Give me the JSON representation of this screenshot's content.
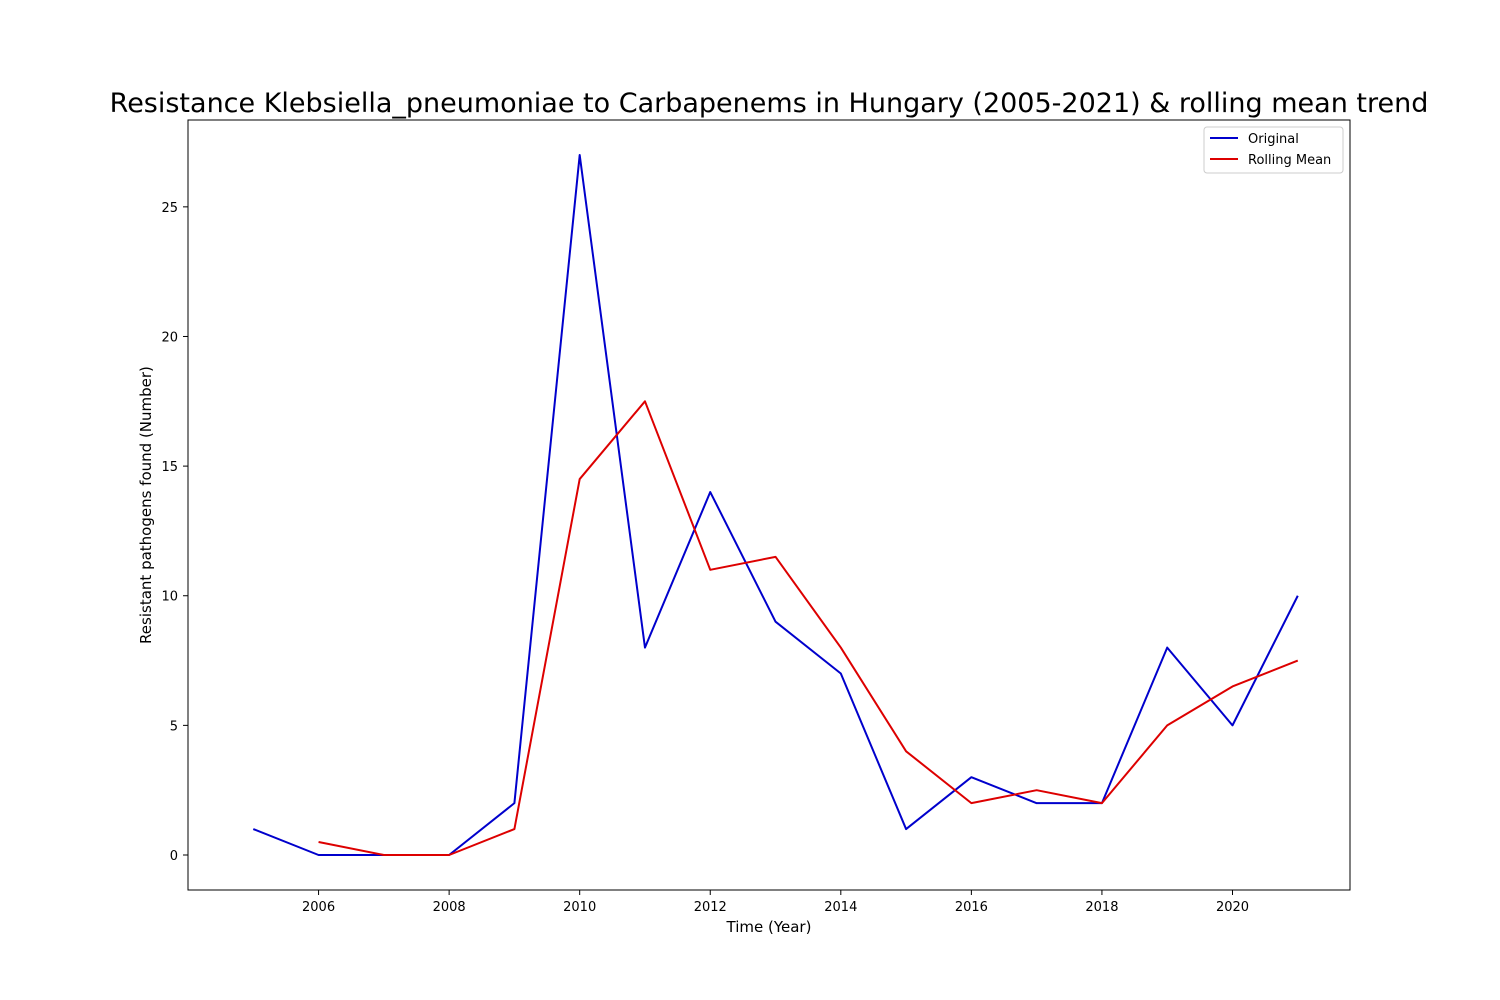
{
  "chart_data": {
    "type": "line",
    "title": "Resistance Klebsiella_pneumoniae to Carbapenems in Hungary (2005-2021) & rolling mean trend",
    "xlabel": "Time (Year)",
    "ylabel": "Resistant pathogens found (Number)",
    "xlim": [
      2004.0,
      2021.8
    ],
    "ylim": [
      -1.35,
      28.35
    ],
    "xticks": [
      2006,
      2008,
      2010,
      2012,
      2014,
      2016,
      2018,
      2020
    ],
    "yticks": [
      0,
      5,
      10,
      15,
      20,
      25
    ],
    "grid": false,
    "legend_position": "top-right",
    "series": [
      {
        "name": "Original",
        "color": "#0000cc",
        "x": [
          2005,
          2006,
          2007,
          2008,
          2009,
          2010,
          2011,
          2012,
          2013,
          2014,
          2015,
          2016,
          2017,
          2018,
          2019,
          2020,
          2021
        ],
        "values": [
          1,
          0,
          0,
          0,
          2,
          27,
          8,
          14,
          9,
          7,
          1,
          3,
          2,
          2,
          8,
          5,
          10
        ]
      },
      {
        "name": "Rolling Mean",
        "color": "#dd0000",
        "x": [
          2006,
          2007,
          2008,
          2009,
          2010,
          2011,
          2012,
          2013,
          2014,
          2015,
          2016,
          2017,
          2018,
          2019,
          2020,
          2021
        ],
        "values": [
          0.5,
          0,
          0,
          1,
          14.5,
          17.5,
          11,
          11.5,
          8,
          4,
          2,
          2.5,
          2,
          5,
          6.5,
          7.5
        ]
      }
    ]
  }
}
